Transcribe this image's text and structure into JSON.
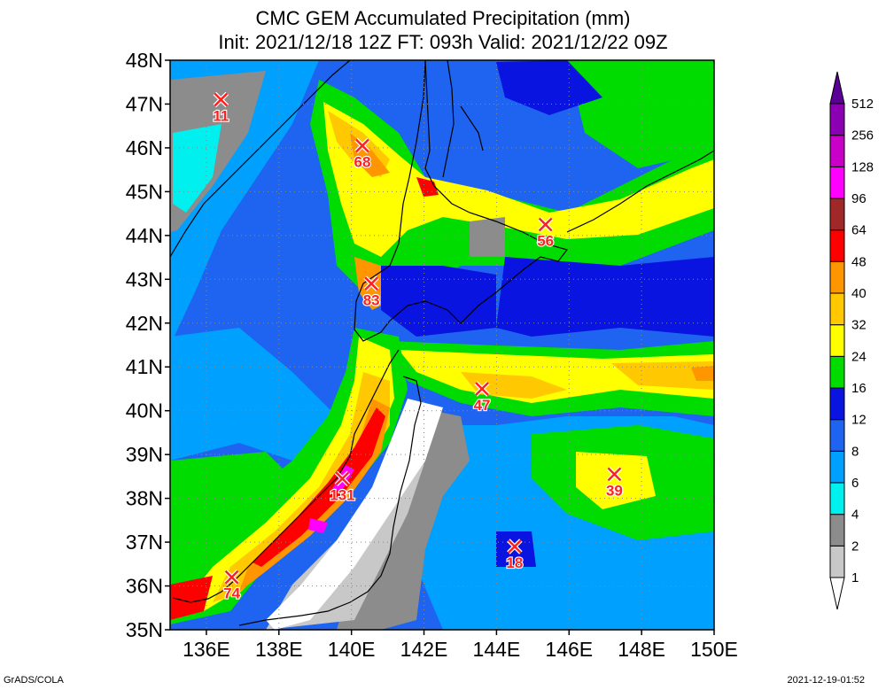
{
  "title": {
    "line1": "CMC GEM Accumulated Precipitation (mm)",
    "line2": "Init: 2021/12/18 12Z  FT: 093h  Valid: 2021/12/22 09Z"
  },
  "footer": {
    "left": "GrADS/COLA",
    "right": "2021-12-19-01:52"
  },
  "map": {
    "lon_range": [
      135,
      150
    ],
    "lat_range": [
      35,
      48
    ],
    "lon_ticks": [
      "136E",
      "138E",
      "140E",
      "142E",
      "144E",
      "146E",
      "148E",
      "150E"
    ],
    "lon_tick_values": [
      136,
      138,
      140,
      142,
      144,
      146,
      148,
      150
    ],
    "lat_ticks": [
      "35N",
      "36N",
      "37N",
      "38N",
      "39N",
      "40N",
      "41N",
      "42N",
      "43N",
      "44N",
      "45N",
      "46N",
      "47N",
      "48N"
    ],
    "lat_tick_values": [
      35,
      36,
      37,
      38,
      39,
      40,
      41,
      42,
      43,
      44,
      45,
      46,
      47,
      48
    ],
    "grid": "dotted"
  },
  "colorbar": {
    "labels": [
      "1",
      "2",
      "4",
      "6",
      "8",
      "12",
      "16",
      "24",
      "32",
      "40",
      "48",
      "64",
      "96",
      "128",
      "256",
      "512"
    ],
    "colors": [
      "#ffffff",
      "#c8c8c8",
      "#8c8c8c",
      "#00f0f0",
      "#00a0ff",
      "#1e64f0",
      "#0a14e0",
      "#00dc00",
      "#ffff00",
      "#ffc800",
      "#ff9600",
      "#ff0000",
      "#a02828",
      "#ff00ff",
      "#c800c8",
      "#8c00b4",
      "#5a0096"
    ]
  },
  "markers": [
    {
      "label": "11",
      "lon": 136.4,
      "lat": 47.1
    },
    {
      "label": "68",
      "lon": 140.3,
      "lat": 46.05
    },
    {
      "label": "56",
      "lon": 145.35,
      "lat": 44.25
    },
    {
      "label": "83",
      "lon": 140.55,
      "lat": 42.9
    },
    {
      "label": "47",
      "lon": 143.6,
      "lat": 40.5
    },
    {
      "label": "39",
      "lon": 147.25,
      "lat": 38.55
    },
    {
      "label": "131",
      "lon": 139.75,
      "lat": 38.45
    },
    {
      "label": "18",
      "lon": 144.5,
      "lat": 36.9
    },
    {
      "label": "74",
      "lon": 136.7,
      "lat": 36.2
    }
  ]
}
